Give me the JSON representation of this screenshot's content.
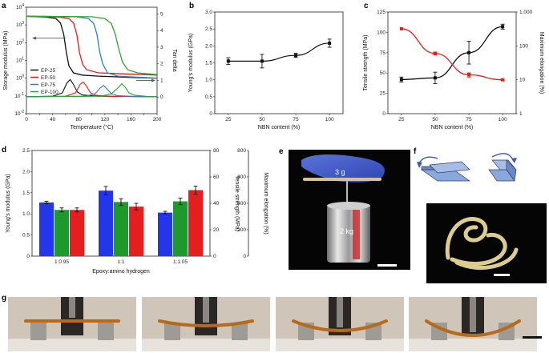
{
  "panels": {
    "a": {
      "label": "a"
    },
    "b": {
      "label": "b"
    },
    "c": {
      "label": "c"
    },
    "d": {
      "label": "d"
    },
    "e": {
      "label": "e",
      "weight_top": "3 g",
      "weight_bottom": "2 kg"
    },
    "f": {
      "label": "f"
    },
    "g": {
      "label": "g"
    }
  },
  "chart_data": [
    {
      "id": "a",
      "type": "line",
      "xlabel": "Temperature (°C)",
      "ylabel": "Storage modulus (MPa)",
      "y2label": "Tan delta",
      "xlim": [
        0,
        200
      ],
      "xticks": [
        "0",
        "20",
        "40",
        "60",
        "80",
        "100",
        "120",
        "140",
        "160",
        "180",
        "200"
      ],
      "ylog": true,
      "ylim_exp": [
        -2,
        4
      ],
      "yticks": [
        "10^-2",
        "10^-1",
        "10^0",
        "10^1",
        "10^2",
        "10^3",
        "10^4"
      ],
      "y2lim": [
        -1,
        5.4
      ],
      "y2ticks": [
        "0",
        "1",
        "2",
        "3",
        "4",
        "5"
      ],
      "legend": [
        "EP-25",
        "EP-50",
        "EP-75",
        "EP-100"
      ],
      "legend_position": "left",
      "colors": [
        "#111111",
        "#e0201b",
        "#2f7ec9",
        "#2aa336"
      ],
      "series": [
        {
          "name": "EP-25",
          "modulus": [
            [
              0,
              3100
            ],
            [
              30,
              2800
            ],
            [
              45,
              2300
            ],
            [
              52,
              1300
            ],
            [
              57,
              300
            ],
            [
              61,
              30
            ],
            [
              65,
              5
            ],
            [
              72,
              2
            ],
            [
              85,
              1.5
            ],
            [
              110,
              1.3
            ],
            [
              160,
              1.1
            ],
            [
              200,
              1
            ]
          ],
          "tan": [
            [
              0,
              0.02
            ],
            [
              40,
              0.05
            ],
            [
              55,
              0.25
            ],
            [
              62,
              0.85
            ],
            [
              67,
              1.05
            ],
            [
              72,
              0.75
            ],
            [
              78,
              0.3
            ],
            [
              86,
              0.12
            ],
            [
              110,
              0.05
            ],
            [
              200,
              0.02
            ]
          ]
        },
        {
          "name": "EP-50",
          "modulus": [
            [
              0,
              3100
            ],
            [
              50,
              2800
            ],
            [
              65,
              2300
            ],
            [
              72,
              1300
            ],
            [
              77,
              300
            ],
            [
              81,
              30
            ],
            [
              86,
              6
            ],
            [
              92,
              3
            ],
            [
              110,
              2
            ],
            [
              200,
              1.5
            ]
          ],
          "tan": [
            [
              0,
              0.02
            ],
            [
              60,
              0.05
            ],
            [
              75,
              0.25
            ],
            [
              82,
              0.75
            ],
            [
              87,
              0.9
            ],
            [
              92,
              0.65
            ],
            [
              98,
              0.25
            ],
            [
              106,
              0.1
            ],
            [
              130,
              0.04
            ],
            [
              200,
              0.02
            ]
          ]
        },
        {
          "name": "EP-75",
          "modulus": [
            [
              0,
              3100
            ],
            [
              75,
              2900
            ],
            [
              95,
              2300
            ],
            [
              103,
              1200
            ],
            [
              108,
              300
            ],
            [
              112,
              30
            ],
            [
              117,
              6
            ],
            [
              124,
              2
            ],
            [
              140,
              1.3
            ],
            [
              200,
              1
            ]
          ],
          "tan": [
            [
              0,
              0.02
            ],
            [
              90,
              0.05
            ],
            [
              105,
              0.2
            ],
            [
              113,
              0.55
            ],
            [
              118,
              0.7
            ],
            [
              123,
              0.5
            ],
            [
              130,
              0.2
            ],
            [
              140,
              0.08
            ],
            [
              170,
              0.03
            ],
            [
              200,
              0.02
            ]
          ]
        },
        {
          "name": "EP-100",
          "modulus": [
            [
              0,
              3100
            ],
            [
              100,
              2900
            ],
            [
              120,
              2300
            ],
            [
              130,
              1200
            ],
            [
              136,
              300
            ],
            [
              141,
              50
            ],
            [
              147,
              8
            ],
            [
              155,
              3
            ],
            [
              170,
              2
            ],
            [
              200,
              1.6
            ]
          ],
          "tan": [
            [
              0,
              0.02
            ],
            [
              115,
              0.05
            ],
            [
              130,
              0.2
            ],
            [
              140,
              0.55
            ],
            [
              146,
              0.8
            ],
            [
              151,
              0.6
            ],
            [
              157,
              0.25
            ],
            [
              166,
              0.1
            ],
            [
              185,
              0.04
            ],
            [
              200,
              0.02
            ]
          ]
        }
      ]
    },
    {
      "id": "b",
      "type": "line",
      "xlabel": "NBN content (%)",
      "ylabel": "Young's modulus (GPa)",
      "x": [
        25,
        50,
        75,
        100
      ],
      "y": [
        1.55,
        1.55,
        1.72,
        2.08
      ],
      "yerr": [
        0.1,
        0.2,
        0.06,
        0.12
      ],
      "xlim": [
        15,
        110
      ],
      "ylim": [
        0,
        3.0
      ],
      "xticks": [
        "25",
        "50",
        "75",
        "100"
      ],
      "yticks": [
        "0",
        "0.5",
        "1.0",
        "1.5",
        "2.0",
        "2.5",
        "3.0"
      ],
      "color": "#111111"
    },
    {
      "id": "c",
      "type": "line",
      "xlabel": "NBN content (%)",
      "ylabel": "Tensile strength (MPa)",
      "y2label": "Maximum elongation (%)",
      "xticks": [
        "25",
        "50",
        "75",
        "100"
      ],
      "yticks": [
        "0",
        "25",
        "50",
        "75",
        "100",
        "125"
      ],
      "y2ticks": [
        "1",
        "10",
        "100",
        "1,000"
      ],
      "ylim": [
        0,
        125
      ],
      "y2log": true,
      "y2lim_exp": [
        0,
        3
      ],
      "series": [
        {
          "name": "Tensile strength",
          "color": "#111111",
          "x": [
            25,
            50,
            75,
            100
          ],
          "y": [
            42,
            44,
            75,
            107
          ],
          "yerr": [
            3,
            7,
            14,
            3
          ]
        },
        {
          "name": "Maximum elongation",
          "color": "#e0201b",
          "x": [
            25,
            50,
            75,
            100
          ],
          "y": [
            320,
            60,
            14,
            10
          ],
          "yerr": [
            0,
            6,
            2,
            0.5
          ]
        }
      ]
    },
    {
      "id": "d",
      "type": "bar",
      "xlabel": "Epoxy:amino hydrogen",
      "categories": [
        "1:0.95",
        "1:1",
        "1:1.05"
      ],
      "y1label": "Young's modulus (GPa)",
      "y2label": "Tensile strength (MPa)",
      "y3label": "Maximum elongation (%)",
      "y1lim": [
        0,
        2.5
      ],
      "y1ticks": [
        "0",
        "0.5",
        "1.0",
        "1.5",
        "2.0",
        "2.5"
      ],
      "y2lim": [
        0,
        80
      ],
      "y2ticks": [
        "0",
        "20",
        "40",
        "60",
        "80"
      ],
      "y3lim": [
        0,
        800
      ],
      "y3ticks": [
        "0",
        "200",
        "400",
        "600",
        "800"
      ],
      "series": [
        {
          "name": "Young's modulus",
          "color": "#2437e8",
          "axis": 1,
          "values": [
            1.27,
            1.55,
            1.03
          ],
          "err": [
            0.03,
            0.1,
            0.03
          ]
        },
        {
          "name": "Tensile strength",
          "color": "#1e9a2c",
          "axis": 2,
          "values": [
            35,
            41,
            41.5
          ],
          "err": [
            1.5,
            2.5,
            2.5
          ]
        },
        {
          "name": "Maximum elongation",
          "color": "#e41f1f",
          "axis": 3,
          "values": [
            350,
            375,
            500
          ],
          "err": [
            15,
            25,
            30
          ]
        }
      ]
    }
  ]
}
